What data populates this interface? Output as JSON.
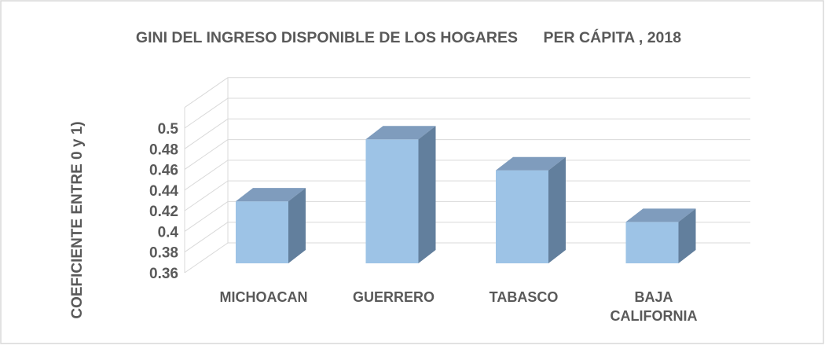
{
  "chart_data": {
    "type": "bar3d",
    "title": "GINI DEL INGRESO DISPONIBLE DE LOS HOGARES      PER CÁPITA , 2018",
    "y_label": "COEFICIENTE ENTRE 0 y 1)",
    "categories": [
      "MICHOACAN",
      "GUERRERO",
      "TABASCO",
      "BAJA CALIFORNIA"
    ],
    "values": [
      0.42,
      0.48,
      0.45,
      0.4
    ],
    "color": "#9dc3e6",
    "ylim": [
      0.36,
      0.52
    ],
    "yticks": [
      0.36,
      0.38,
      0.4,
      0.42,
      0.44,
      0.46,
      0.48,
      0.5
    ],
    "grid": true
  }
}
